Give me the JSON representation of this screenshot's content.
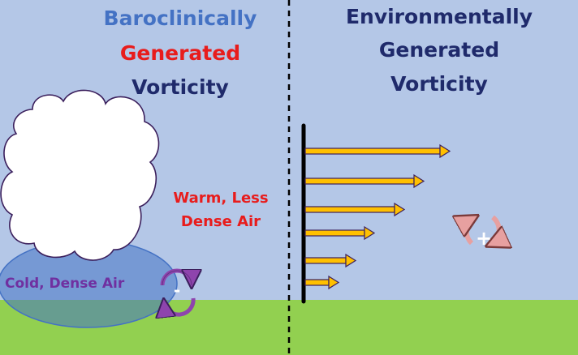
{
  "left_title": {
    "line1": "Baroclinically",
    "line2": "Generated",
    "line3": "Vorticity"
  },
  "right_title": {
    "line1": "Environmentally",
    "line2": "Generated",
    "line3": "Vorticity"
  },
  "labels": {
    "warm_line1": "Warm, Less",
    "warm_line2": "Dense Air",
    "cold": "Cold, Dense Air"
  },
  "vortex_left": {
    "sign": "-"
  },
  "vortex_right": {
    "sign": "+"
  },
  "colors": {
    "sky": "#b4c7e7",
    "ground": "#92d050",
    "cold_pool": "#4472c4",
    "arrow_fill": "#ffc000",
    "arrow_outline": "#3b1f5c",
    "vortex_left": "#8e44ad",
    "vortex_right": "#e7a0a0"
  }
}
